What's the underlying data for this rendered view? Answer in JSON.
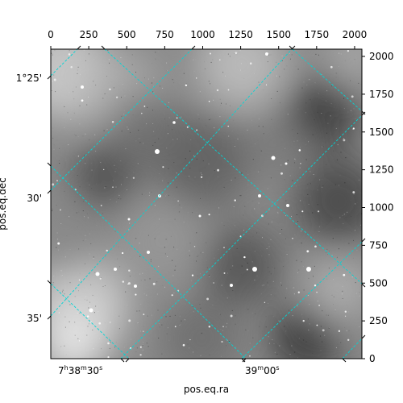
{
  "chart_data": {
    "type": "image",
    "xlabel": "pos.eq.ra",
    "ylabel": "pos.eq.dec",
    "pixel_x": {
      "ticks": [
        "0",
        "250",
        "500",
        "750",
        "1000",
        "1250",
        "1500",
        "1750",
        "2000"
      ],
      "lim": [
        0,
        2048
      ]
    },
    "pixel_y": {
      "ticks": [
        "0",
        "250",
        "500",
        "750",
        "1000",
        "1250",
        "1500",
        "1750",
        "2000"
      ],
      "lim": [
        0,
        2048
      ]
    },
    "ra_ticks": [
      {
        "h": "7",
        "m": "38",
        "s": "30"
      },
      {
        "h": "",
        "m": "39",
        "s": "00"
      }
    ],
    "dec_ticks": [
      "1°25'",
      "30'",
      "35'"
    ],
    "grid": true,
    "grid_color": "#00d5d5",
    "image_colormap": "gray"
  }
}
